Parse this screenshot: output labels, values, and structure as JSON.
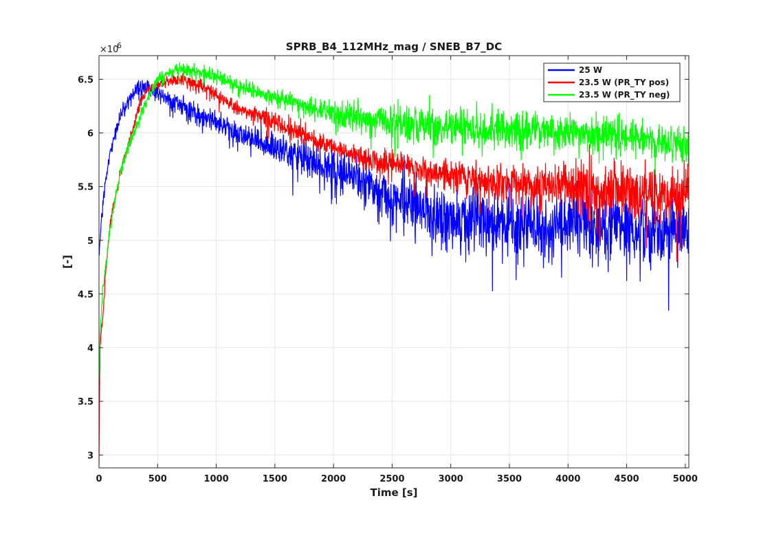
{
  "chart_data": {
    "type": "line",
    "title": "SPRB_B4_112MHz_mag / SNEB_B7_DC",
    "xlabel": "Time [s]",
    "ylabel": "[-]",
    "y_multiplier_label": "×10",
    "y_multiplier_exponent": "-6",
    "xlim": [
      0,
      5030
    ],
    "ylim": [
      2.88,
      6.72
    ],
    "x_ticks": [
      0,
      500,
      1000,
      1500,
      2000,
      2500,
      3000,
      3500,
      4000,
      4500,
      5000
    ],
    "x_tick_labels": [
      "0",
      "500",
      "1000",
      "1500",
      "2000",
      "2500",
      "3000",
      "3500",
      "4000",
      "4500",
      "5000"
    ],
    "y_ticks": [
      3,
      3.5,
      4,
      4.5,
      5,
      5.5,
      6,
      6.5
    ],
    "y_tick_labels": [
      "3",
      "3.5",
      "4",
      "4.5",
      "5",
      "5.5",
      "6",
      "6.5"
    ],
    "grid": true,
    "legend_position": "top-right",
    "series": [
      {
        "name": "25 W",
        "color": "#0000ff",
        "x": [
          0,
          20,
          50,
          100,
          150,
          200,
          250,
          300,
          350,
          400,
          450,
          500,
          600,
          700,
          800,
          900,
          1000,
          1100,
          1200,
          1300,
          1400,
          1500,
          1600,
          1700,
          1800,
          1900,
          2000,
          2100,
          2200,
          2300,
          2400,
          2500,
          2600,
          2700,
          2800,
          2900,
          3000,
          3200,
          3400,
          3600,
          3800,
          4000,
          4200,
          4400,
          4600,
          4800,
          5030
        ],
        "y": [
          4.85,
          5.2,
          5.5,
          5.85,
          6.05,
          6.2,
          6.3,
          6.38,
          6.42,
          6.43,
          6.4,
          6.38,
          6.32,
          6.25,
          6.2,
          6.15,
          6.1,
          6.05,
          6.0,
          5.95,
          5.9,
          5.86,
          5.82,
          5.78,
          5.74,
          5.7,
          5.68,
          5.63,
          5.58,
          5.52,
          5.45,
          5.42,
          5.38,
          5.32,
          5.25,
          5.22,
          5.2,
          5.18,
          5.16,
          5.15,
          5.12,
          5.15,
          5.13,
          5.12,
          5.1,
          5.1,
          5.12
        ],
        "noise": [
          0.02,
          0.03,
          0.03,
          0.03,
          0.03,
          0.04,
          0.04,
          0.04,
          0.05,
          0.05,
          0.05,
          0.05,
          0.05,
          0.05,
          0.06,
          0.06,
          0.06,
          0.06,
          0.06,
          0.07,
          0.07,
          0.08,
          0.08,
          0.09,
          0.1,
          0.11,
          0.12,
          0.13,
          0.14,
          0.15,
          0.16,
          0.17,
          0.17,
          0.18,
          0.18,
          0.18,
          0.19,
          0.19,
          0.19,
          0.19,
          0.19,
          0.19,
          0.19,
          0.19,
          0.19,
          0.19,
          0.19
        ]
      },
      {
        "name": "23.5 W (PR_TY pos)",
        "color": "#ff0000",
        "x": [
          0,
          5,
          10,
          30,
          60,
          100,
          150,
          200,
          250,
          300,
          350,
          400,
          450,
          500,
          600,
          700,
          800,
          900,
          1000,
          1100,
          1200,
          1300,
          1400,
          1500,
          1600,
          1700,
          1800,
          1900,
          2000,
          2100,
          2200,
          2300,
          2400,
          2500,
          2600,
          2700,
          2800,
          2900,
          3000,
          3200,
          3400,
          3600,
          3800,
          4000,
          4200,
          4400,
          4600,
          4800,
          5030
        ],
        "y": [
          2.9,
          3.6,
          4.05,
          4.25,
          4.75,
          5.2,
          5.45,
          5.72,
          5.88,
          6.08,
          6.28,
          6.38,
          6.43,
          6.46,
          6.48,
          6.5,
          6.47,
          6.43,
          6.35,
          6.28,
          6.22,
          6.18,
          6.15,
          6.1,
          6.05,
          6.0,
          5.95,
          5.9,
          5.86,
          5.83,
          5.8,
          5.77,
          5.74,
          5.72,
          5.7,
          5.68,
          5.64,
          5.62,
          5.6,
          5.57,
          5.54,
          5.52,
          5.5,
          5.48,
          5.47,
          5.45,
          5.44,
          5.43,
          5.42
        ],
        "noise": [
          0.0,
          0.0,
          0.02,
          0.03,
          0.03,
          0.03,
          0.03,
          0.03,
          0.03,
          0.03,
          0.03,
          0.03,
          0.03,
          0.03,
          0.03,
          0.03,
          0.04,
          0.04,
          0.04,
          0.04,
          0.04,
          0.04,
          0.05,
          0.05,
          0.05,
          0.05,
          0.05,
          0.05,
          0.05,
          0.05,
          0.05,
          0.06,
          0.06,
          0.06,
          0.06,
          0.07,
          0.07,
          0.08,
          0.08,
          0.09,
          0.1,
          0.11,
          0.12,
          0.13,
          0.14,
          0.14,
          0.15,
          0.15,
          0.15
        ]
      },
      {
        "name": "23.5 W (PR_TY neg)",
        "color": "#00ff00",
        "x": [
          0,
          10,
          30,
          60,
          100,
          150,
          200,
          250,
          300,
          350,
          400,
          450,
          500,
          600,
          700,
          800,
          900,
          1000,
          1100,
          1200,
          1300,
          1400,
          1500,
          1600,
          1700,
          1800,
          1900,
          2000,
          2200,
          2400,
          2600,
          2800,
          3000,
          3200,
          3400,
          3600,
          3800,
          4000,
          4200,
          4400,
          4600,
          4800,
          5030
        ],
        "y": [
          3.7,
          4.15,
          4.5,
          4.8,
          5.15,
          5.45,
          5.7,
          5.88,
          6.0,
          6.15,
          6.28,
          6.4,
          6.5,
          6.57,
          6.6,
          6.58,
          6.56,
          6.52,
          6.48,
          6.44,
          6.4,
          6.36,
          6.33,
          6.3,
          6.27,
          6.24,
          6.21,
          6.18,
          6.14,
          6.11,
          6.09,
          6.07,
          6.06,
          6.04,
          6.03,
          6.02,
          6.01,
          6.0,
          5.99,
          5.97,
          5.95,
          5.92,
          5.88
        ],
        "noise": [
          0.0,
          0.02,
          0.03,
          0.03,
          0.03,
          0.03,
          0.03,
          0.03,
          0.03,
          0.03,
          0.03,
          0.03,
          0.03,
          0.03,
          0.04,
          0.04,
          0.04,
          0.04,
          0.04,
          0.04,
          0.04,
          0.04,
          0.05,
          0.05,
          0.05,
          0.06,
          0.06,
          0.07,
          0.08,
          0.09,
          0.1,
          0.1,
          0.1,
          0.1,
          0.1,
          0.1,
          0.1,
          0.1,
          0.1,
          0.1,
          0.1,
          0.1,
          0.1
        ]
      }
    ]
  }
}
